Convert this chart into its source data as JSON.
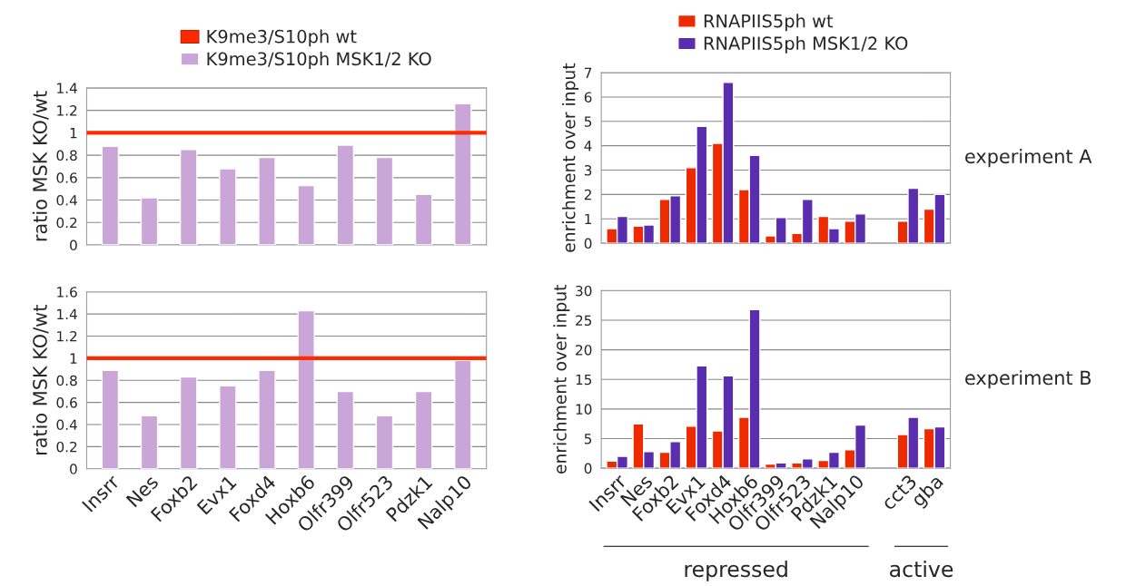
{
  "chart_data": [
    {
      "type": "bar",
      "categories": [
        null,
        null,
        null,
        null,
        null,
        null,
        null,
        null,
        null,
        null
      ],
      "ylabel": "ratio MSK KO/wt",
      "ylim": [
        0,
        1.4
      ],
      "yticks": [
        0,
        0.2,
        0.4,
        0.6,
        0.8,
        1,
        1.2,
        1.4
      ],
      "grid": "y",
      "legend": "top",
      "series": [
        {
          "name": "K9me3/S10ph MSK1/2 KO",
          "color": "#c9a5d8",
          "values": [
            0.88,
            0.42,
            0.85,
            0.68,
            0.78,
            0.53,
            0.89,
            0.78,
            0.45,
            1.26
          ]
        }
      ],
      "ref_lines": [
        {
          "axis": "y",
          "value": 1,
          "label": "K9me3/S10ph wt",
          "color": "#ff2a00"
        }
      ]
    },
    {
      "type": "bar",
      "categories": [
        "Insrr",
        "Nes",
        "Foxb2",
        "Evx1",
        "Foxd4",
        "Hoxb6",
        "Olfr399",
        "Olfr523",
        "Pdzk1",
        "Nalp10"
      ],
      "ylabel": "ratio MSK KO/wt",
      "ylim": [
        0,
        1.6
      ],
      "yticks": [
        0,
        0.2,
        0.4,
        0.6,
        0.8,
        1,
        1.2,
        1.4,
        1.6
      ],
      "grid": "y",
      "series": [
        {
          "color": "#c9a5d8",
          "values": [
            0.89,
            0.48,
            0.83,
            0.75,
            0.89,
            1.43,
            0.7,
            0.48,
            0.7,
            0.98
          ]
        }
      ],
      "ref_lines": [
        {
          "axis": "y",
          "value": 1,
          "color": "#ff2a00"
        }
      ]
    },
    {
      "type": "bar",
      "categories": [
        null,
        null,
        null,
        null,
        null,
        null,
        null,
        null,
        null,
        null,
        null,
        null,
        null
      ],
      "ylabel": "enrichment over input",
      "ylim": [
        0,
        7
      ],
      "yticks": [
        0,
        1,
        2,
        3,
        4,
        5,
        6,
        7
      ],
      "grid": "y",
      "legend": "top",
      "series": [
        {
          "name": "RNAPIIS5ph wt",
          "color": "#ee2a00",
          "values": [
            0.6,
            0.7,
            1.8,
            3.1,
            4.1,
            2.2,
            0.3,
            0.4,
            1.1,
            0.9,
            null,
            0.9,
            1.4
          ]
        },
        {
          "name": "RNAPIIS5ph MSK1/2 KO",
          "color": "#5a2daf",
          "values": [
            1.1,
            0.75,
            1.95,
            4.8,
            6.6,
            3.6,
            1.05,
            1.8,
            0.6,
            1.2,
            null,
            2.25,
            2.0
          ]
        }
      ],
      "annotations": [
        "experiment A"
      ]
    },
    {
      "type": "bar",
      "categories": [
        "Insrr",
        "Nes",
        "Foxb2",
        "Evx1",
        "Foxd4",
        "Hoxb6",
        "Olfr399",
        "Olfr523",
        "Pdzk1",
        "Nalp10",
        null,
        "cct3",
        "gba"
      ],
      "ylabel": "enrichment over input",
      "ylim": [
        0,
        30
      ],
      "yticks": [
        0,
        5,
        10,
        15,
        20,
        25,
        30
      ],
      "grid": "y",
      "series": [
        {
          "color": "#ee2a00",
          "values": [
            1.2,
            7.5,
            2.7,
            7.1,
            6.3,
            8.6,
            0.7,
            0.9,
            1.3,
            3.1,
            null,
            5.7,
            6.7
          ]
        },
        {
          "color": "#5a2daf",
          "values": [
            2.0,
            2.8,
            4.5,
            17.3,
            15.6,
            26.8,
            0.9,
            1.6,
            2.7,
            7.3,
            null,
            8.6,
            7.0
          ]
        }
      ],
      "annotations": [
        "experiment B",
        "repressed",
        "active"
      ]
    }
  ]
}
